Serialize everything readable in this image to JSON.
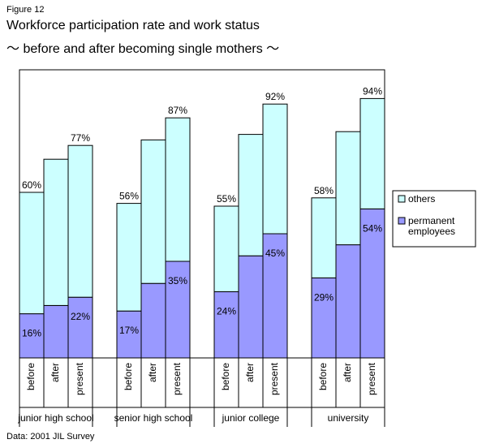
{
  "figure_label": "Figure 12",
  "title_line1": "Workforce participation rate and work status",
  "title_line2": "～ before and after becoming single mothers ～",
  "source": "Data: 2001 JIL Survey",
  "colors": {
    "others": "#CCFFFF",
    "permanent": "#9999FF",
    "axis": "#000000"
  },
  "chart_data": {
    "type": "bar",
    "stacked": true,
    "ylim": [
      0,
      100
    ],
    "grid": false,
    "legend_position": "right",
    "groups": [
      "junior high school",
      "senior high school",
      "junior college",
      "university"
    ],
    "categories": [
      "before",
      "after",
      "present"
    ],
    "series": [
      {
        "name": "permanent employees",
        "values": [
          [
            16,
            19,
            22
          ],
          [
            17,
            27,
            35
          ],
          [
            24,
            37,
            45
          ],
          [
            29,
            41,
            54
          ]
        ]
      },
      {
        "name": "others",
        "values": [
          [
            44,
            53,
            55
          ],
          [
            39,
            52,
            52
          ],
          [
            31,
            44,
            47
          ],
          [
            29,
            41,
            40
          ]
        ]
      }
    ],
    "total_labels": [
      [
        "60%",
        "",
        "77%"
      ],
      [
        "56%",
        "",
        "87%"
      ],
      [
        "55%",
        "",
        "92%"
      ],
      [
        "58%",
        "",
        "94%"
      ]
    ],
    "permanent_labels": [
      [
        "16%",
        "",
        "22%"
      ],
      [
        "17%",
        "",
        "35%"
      ],
      [
        "24%",
        "",
        "45%"
      ],
      [
        "29%",
        "",
        "54%"
      ]
    ],
    "legend": [
      {
        "key": "others",
        "label_lines": [
          "others"
        ]
      },
      {
        "key": "permanent",
        "label_lines": [
          "permanent",
          "employees"
        ]
      }
    ]
  }
}
